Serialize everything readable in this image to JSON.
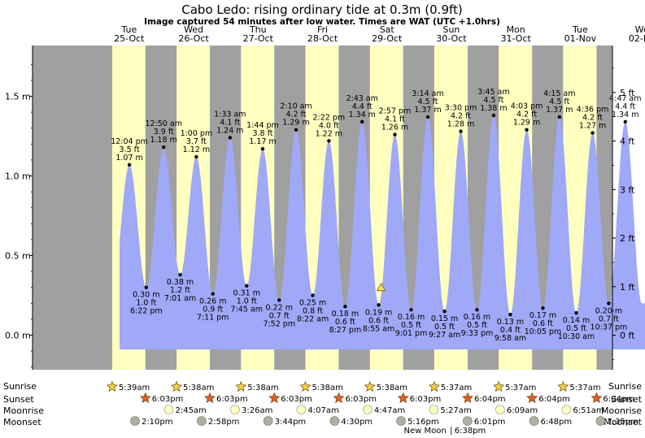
{
  "chart_data": {
    "type": "area",
    "title": "Cabo Ledo: rising  ordinary tide at 0.3m (0.9ft)",
    "subtitle": "Image captured 54 minutes after low water. Times are WAT (UTC +1.0hrs)",
    "ylim_m": [
      -0.25,
      1.75
    ],
    "left_ticks": [
      "1.5 m",
      "1.0 m",
      "0.5 m",
      "0.0 m"
    ],
    "left_tick_values": [
      1.5,
      1.0,
      0.5,
      0.0
    ],
    "right_ticks": [
      "5 ft",
      "4 ft",
      "3 ft",
      "2 ft",
      "1 ft",
      "0 ft"
    ],
    "right_tick_values_ft": [
      5,
      4,
      3,
      2,
      1,
      0
    ],
    "x_start_day": 24,
    "x_end_day": 33,
    "days": [
      {
        "day": "Tue",
        "date": "25-Oct",
        "noon": 25.5
      },
      {
        "day": "Wed",
        "date": "26-Oct",
        "noon": 26.5
      },
      {
        "day": "Thu",
        "date": "27-Oct",
        "noon": 27.5
      },
      {
        "day": "Fri",
        "date": "28-Oct",
        "noon": 28.5
      },
      {
        "day": "Sat",
        "date": "29-Oct",
        "noon": 29.5
      },
      {
        "day": "Sun",
        "date": "30-Oct",
        "noon": 30.5
      },
      {
        "day": "Mon",
        "date": "31-Oct",
        "noon": 31.5
      },
      {
        "day": "Tue",
        "date": "01-Nov",
        "noon": 32.5
      },
      {
        "day": "Wed",
        "date": "02-Nov",
        "noon": 33.5
      }
    ],
    "daylight": [
      [
        25.236,
        25.752
      ],
      [
        26.235,
        26.752
      ],
      [
        27.235,
        27.752
      ],
      [
        28.235,
        28.752
      ],
      [
        29.235,
        29.752
      ],
      [
        30.234,
        30.753
      ],
      [
        31.234,
        31.753
      ],
      [
        32.234,
        32.753
      ]
    ],
    "series_extent": [
      25.35,
      33.53
    ],
    "extremes": [
      {
        "t": 25.503,
        "m": 1.07,
        "time": "12:04 pm",
        "ft": "3.5 ft",
        "h": "1.07 m",
        "type": "high"
      },
      {
        "t": 25.765,
        "m": 0.3,
        "time": "6:22 pm",
        "ft": "1.0 ft",
        "h": "0.30 m",
        "type": "low"
      },
      {
        "t": 26.035,
        "m": 1.18,
        "time": "12:50 am",
        "ft": "3.9 ft",
        "h": "1.18 m",
        "type": "high"
      },
      {
        "t": 26.292,
        "m": 0.38,
        "time": "7:01 am",
        "ft": "1.2 ft",
        "h": "0.38 m",
        "type": "low"
      },
      {
        "t": 26.542,
        "m": 1.12,
        "time": "1:00 pm",
        "ft": "3.7 ft",
        "h": "1.12 m",
        "type": "high"
      },
      {
        "t": 26.799,
        "m": 0.26,
        "time": "7:11 pm",
        "ft": "0.9 ft",
        "h": "0.26 m",
        "type": "low"
      },
      {
        "t": 27.065,
        "m": 1.24,
        "time": "1:33 am",
        "ft": "4.1 ft",
        "h": "1.24 m",
        "type": "high"
      },
      {
        "t": 27.323,
        "m": 0.31,
        "time": "7:45 am",
        "ft": "1.0 ft",
        "h": "0.31 m",
        "type": "low"
      },
      {
        "t": 27.572,
        "m": 1.17,
        "time": "1:44 pm",
        "ft": "3.8 ft",
        "h": "1.17 m",
        "type": "high"
      },
      {
        "t": 27.828,
        "m": 0.22,
        "time": "7:52 pm",
        "ft": "0.7 ft",
        "h": "0.22 m",
        "type": "low"
      },
      {
        "t": 28.09,
        "m": 1.29,
        "time": "2:10 am",
        "ft": "4.2 ft",
        "h": "1.29 m",
        "type": "high"
      },
      {
        "t": 28.349,
        "m": 0.25,
        "time": "8:22 am",
        "ft": "0.8 ft",
        "h": "0.25 m",
        "type": "low"
      },
      {
        "t": 28.599,
        "m": 1.22,
        "time": "2:22 pm",
        "ft": "4.0 ft",
        "h": "1.22 m",
        "type": "high"
      },
      {
        "t": 28.852,
        "m": 0.18,
        "time": "8:27 pm",
        "ft": "0.6 ft",
        "h": "0.18 m",
        "type": "low"
      },
      {
        "t": 29.115,
        "m": 1.34,
        "time": "2:43 am",
        "ft": "4.4 ft",
        "h": "1.34 m",
        "type": "high"
      },
      {
        "t": 29.372,
        "m": 0.19,
        "time": "8:55 am",
        "ft": "0.6 ft",
        "h": "0.19 m",
        "type": "low"
      },
      {
        "t": 29.623,
        "m": 1.26,
        "time": "2:57 pm",
        "ft": "4.1 ft",
        "h": "1.26 m",
        "type": "high"
      },
      {
        "t": 29.876,
        "m": 0.16,
        "time": "9:01 pm",
        "ft": "0.5 ft",
        "h": "0.16 m",
        "type": "low"
      },
      {
        "t": 30.135,
        "m": 1.37,
        "time": "3:14 am",
        "ft": "4.5 ft",
        "h": "1.37 m",
        "type": "high"
      },
      {
        "t": 30.394,
        "m": 0.15,
        "time": "9:27 am",
        "ft": "0.5 ft",
        "h": "0.15 m",
        "type": "low"
      },
      {
        "t": 30.646,
        "m": 1.28,
        "time": "3:30 pm",
        "ft": "4.2 ft",
        "h": "1.28 m",
        "type": "high"
      },
      {
        "t": 30.898,
        "m": 0.16,
        "time": "9:33 pm",
        "ft": "0.5 ft",
        "h": "0.16 m",
        "type": "low"
      },
      {
        "t": 31.156,
        "m": 1.38,
        "time": "3:45 am",
        "ft": "4.5 ft",
        "h": "1.38 m",
        "type": "high"
      },
      {
        "t": 31.415,
        "m": 0.13,
        "time": "9:58 am",
        "ft": "0.4 ft",
        "h": "0.13 m",
        "type": "low"
      },
      {
        "t": 31.669,
        "m": 1.29,
        "time": "4:03 pm",
        "ft": "4.2 ft",
        "h": "1.29 m",
        "type": "high"
      },
      {
        "t": 31.92,
        "m": 0.17,
        "time": "10:05 pm",
        "ft": "0.6 ft",
        "h": "0.17 m",
        "type": "low"
      },
      {
        "t": 32.177,
        "m": 1.37,
        "time": "4:15 am",
        "ft": "4.5 ft",
        "h": "1.37 m",
        "type": "high"
      },
      {
        "t": 32.438,
        "m": 0.14,
        "time": "10:30 am",
        "ft": "0.5 ft",
        "h": "0.14 m",
        "type": "low"
      },
      {
        "t": 32.692,
        "m": 1.27,
        "time": "4:36 pm",
        "ft": "4.2 ft",
        "h": "1.27 m",
        "type": "high"
      },
      {
        "t": 32.942,
        "m": 0.2,
        "time": "10:37 pm",
        "ft": "0.7 ft",
        "h": "0.20 m",
        "type": "low"
      },
      {
        "t": 33.199,
        "m": 1.34,
        "time": "4:47 am",
        "ft": "4.4 ft",
        "h": "1.34 m",
        "type": "high"
      }
    ],
    "current": {
      "t": 29.41,
      "m": 0.3
    },
    "colors": {
      "night": "#a0a0a0",
      "day": "#ffffc0",
      "water": "#a0a8f8",
      "day_label": "#d00000",
      "sun_fill": "#f0d040",
      "sunset_fill": "#e06020",
      "moon_fill": "#ffffc0",
      "moonset_fill": "#b0b0a0"
    }
  },
  "legend": {
    "sunrise_label": "Sunrise",
    "sunset_label": "Sunset",
    "moonrise_label": "Moonrise",
    "moonset_label": "Moonset"
  },
  "sunrise": [
    {
      "t": 25.236,
      "time": "5:39am"
    },
    {
      "t": 26.235,
      "time": "5:38am"
    },
    {
      "t": 27.235,
      "time": "5:38am"
    },
    {
      "t": 28.235,
      "time": "5:38am"
    },
    {
      "t": 29.235,
      "time": "5:38am"
    },
    {
      "t": 30.234,
      "time": "5:37am"
    },
    {
      "t": 31.234,
      "time": "5:37am"
    },
    {
      "t": 32.234,
      "time": "5:37am"
    }
  ],
  "sunset": [
    {
      "t": 25.752,
      "time": "6:03pm"
    },
    {
      "t": 26.752,
      "time": "6:03pm"
    },
    {
      "t": 27.752,
      "time": "6:03pm"
    },
    {
      "t": 28.752,
      "time": "6:03pm"
    },
    {
      "t": 29.752,
      "time": "6:03pm"
    },
    {
      "t": 30.753,
      "time": "6:04pm"
    },
    {
      "t": 31.753,
      "time": "6:04pm"
    },
    {
      "t": 32.753,
      "time": "6:04pm"
    }
  ],
  "moonrise": [
    {
      "t": 26.114,
      "time": "2:45am"
    },
    {
      "t": 27.143,
      "time": "3:26am"
    },
    {
      "t": 28.171,
      "time": "4:07am"
    },
    {
      "t": 29.199,
      "time": "4:47am"
    },
    {
      "t": 30.227,
      "time": "5:27am"
    },
    {
      "t": 31.256,
      "time": "6:09am"
    },
    {
      "t": 32.285,
      "time": "6:51am"
    }
  ],
  "moonset": [
    {
      "t": 25.59,
      "time": "2:10pm"
    },
    {
      "t": 26.624,
      "time": "2:58pm"
    },
    {
      "t": 27.656,
      "time": "3:44pm"
    },
    {
      "t": 28.688,
      "time": "4:30pm"
    },
    {
      "t": 29.719,
      "time": "5:16pm"
    },
    {
      "t": 30.751,
      "time": "6:01pm"
    },
    {
      "t": 31.783,
      "time": "6:48pm"
    },
    {
      "t": 32.816,
      "time": "7:35pm"
    }
  ],
  "new_moon": {
    "t": 30.775,
    "label": "New Moon",
    "time": "6:38pm"
  }
}
